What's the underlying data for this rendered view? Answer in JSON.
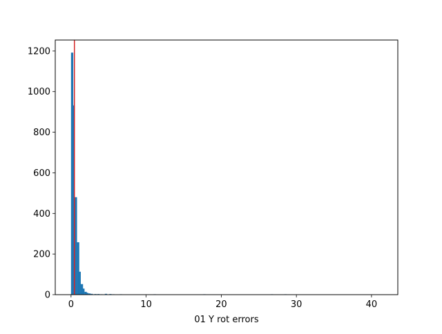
{
  "chart_data": {
    "type": "bar",
    "title": "",
    "xlabel": "01 Y rot errors",
    "ylabel": "",
    "xlim": [
      -2.1,
      43.5
    ],
    "ylim": [
      0,
      1254
    ],
    "xticks": [
      0,
      10,
      20,
      30,
      40
    ],
    "yticks": [
      0,
      200,
      400,
      600,
      800,
      1000,
      1200
    ],
    "grid": false,
    "bar_color": "#1f77b4",
    "line_color": "#d62728",
    "reference_line_x": 0.45,
    "bin_width": 0.3,
    "bins": [
      {
        "x": 0.0,
        "count": 1192
      },
      {
        "x": 0.2,
        "count": 932
      },
      {
        "x": 0.5,
        "count": 480
      },
      {
        "x": 0.8,
        "count": 258
      },
      {
        "x": 1.0,
        "count": 113
      },
      {
        "x": 1.3,
        "count": 52
      },
      {
        "x": 1.5,
        "count": 30
      },
      {
        "x": 1.8,
        "count": 14
      },
      {
        "x": 2.0,
        "count": 9
      },
      {
        "x": 2.3,
        "count": 6
      },
      {
        "x": 2.6,
        "count": 4
      },
      {
        "x": 3.1,
        "count": 3
      },
      {
        "x": 3.5,
        "count": 3
      },
      {
        "x": 3.9,
        "count": 2
      },
      {
        "x": 4.5,
        "count": 4
      },
      {
        "x": 5.1,
        "count": 3
      },
      {
        "x": 5.5,
        "count": 2
      },
      {
        "x": 6.5,
        "count": 2
      },
      {
        "x": 7.5,
        "count": 1
      },
      {
        "x": 8.5,
        "count": 1
      },
      {
        "x": 9.6,
        "count": 1
      },
      {
        "x": 10.4,
        "count": 1
      },
      {
        "x": 11.0,
        "count": 2
      },
      {
        "x": 12.5,
        "count": 1
      },
      {
        "x": 14.0,
        "count": 1
      },
      {
        "x": 16.6,
        "count": 1
      },
      {
        "x": 17.6,
        "count": 2
      },
      {
        "x": 20.6,
        "count": 1
      },
      {
        "x": 26.6,
        "count": 2
      },
      {
        "x": 27.0,
        "count": 1
      },
      {
        "x": 28.4,
        "count": 2
      },
      {
        "x": 40.8,
        "count": 1
      }
    ]
  }
}
